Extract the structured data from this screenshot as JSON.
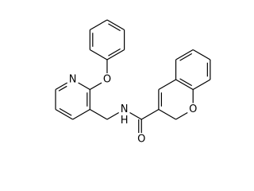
{
  "atoms": [
    {
      "label": "N"
    },
    {
      "label": "O"
    },
    {
      "label": "N"
    },
    {
      "label": "H"
    },
    {
      "label": "O"
    },
    {
      "label": "O"
    }
  ]
}
